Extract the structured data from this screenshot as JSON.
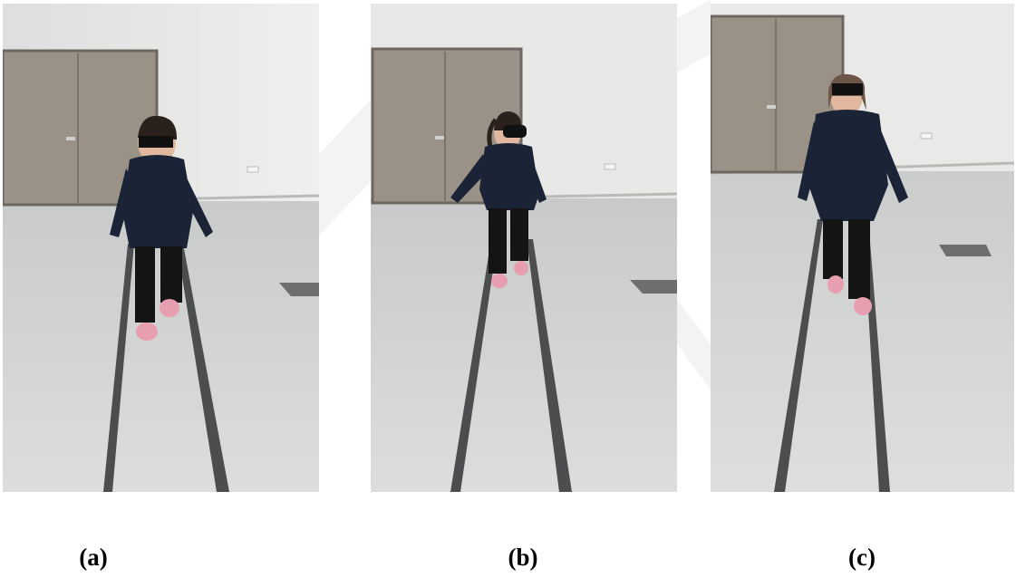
{
  "figure": {
    "panels": [
      {
        "id": "a",
        "caption": "(a)",
        "content": "photo"
      },
      {
        "id": "b",
        "caption": "(b)",
        "content": "photo"
      },
      {
        "id": "c",
        "caption": "(c)",
        "content": "photo"
      }
    ]
  },
  "colors": {
    "wall": "#e6e6e4",
    "floor": "#d6d7d6",
    "door": "#9b9287",
    "tape": "#4b4d4f",
    "jacket": "#1b2336",
    "pants": "#141414",
    "shoes": "#e79fb0",
    "skin": "#e2b79f",
    "caption": "#000000"
  }
}
